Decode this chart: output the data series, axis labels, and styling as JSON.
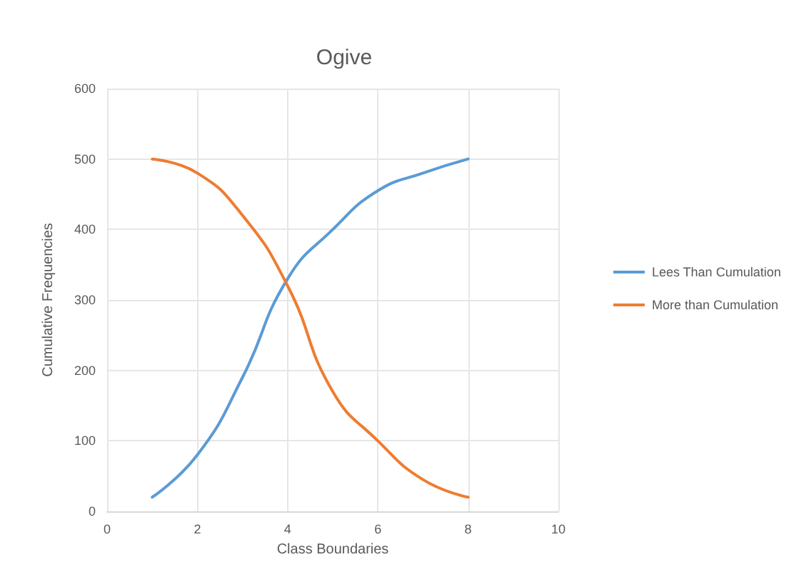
{
  "chart_data": {
    "type": "line",
    "title": "Ogive",
    "xlabel": "Class Boundaries",
    "ylabel": "Cumulative Frequencies",
    "x": [
      1,
      2,
      3,
      4,
      5,
      6,
      7,
      8
    ],
    "series": [
      {
        "name": "Lees Than Cumulation",
        "color": "#5b9bd5",
        "values": [
          20,
          80,
          190,
          330,
          400,
          455,
          480,
          500
        ]
      },
      {
        "name": "More than Cumulation",
        "color": "#ed7d31",
        "values": [
          500,
          480,
          420,
          320,
          170,
          100,
          45,
          20
        ]
      }
    ],
    "xlim": [
      0,
      10
    ],
    "xticks": [
      0,
      2,
      4,
      6,
      8,
      10
    ],
    "ylim": [
      0,
      600
    ],
    "yticks": [
      0,
      100,
      200,
      300,
      400,
      500,
      600
    ],
    "grid": true,
    "legend": "right",
    "marker": "none",
    "line_style": "solid"
  }
}
